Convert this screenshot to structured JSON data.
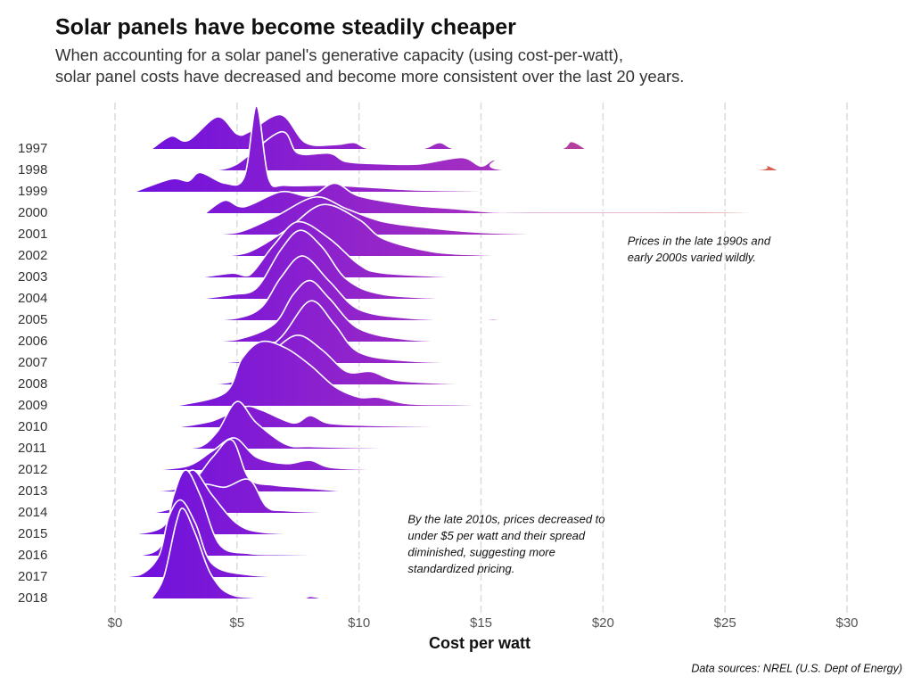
{
  "chart_data": {
    "type": "ridgeline",
    "title": "Solar panels have become steadily cheaper",
    "subtitle": [
      "When accounting for a solar panel's generative capacity (using cost-per-watt),",
      "solar panel costs have decreased and become more consistent over the last 20 years."
    ],
    "x_label": "Cost per watt",
    "source": "Data sources: NREL (U.S. Dept of Energy)",
    "annotations": [
      {
        "x": 21,
        "row": "2001",
        "lines": [
          "Prices in the late 1990s and",
          "early 2000s varied wildly."
        ]
      },
      {
        "x": 12,
        "row": "2014",
        "lines": [
          "By the late 2010s, prices decreased to",
          "under $5 per watt and their spread",
          "diminished, suggesting more",
          "standardized pricing."
        ]
      }
    ],
    "xlim": [
      -0.5,
      31
    ],
    "xticks": [
      {
        "value": 0,
        "label": "$0"
      },
      {
        "value": 5,
        "label": "$5"
      },
      {
        "value": 10,
        "label": "$10"
      },
      {
        "value": 15,
        "label": "$15"
      },
      {
        "value": 20,
        "label": "$20"
      },
      {
        "value": 25,
        "label": "$25"
      },
      {
        "value": 30,
        "label": "$30"
      }
    ],
    "grid": true,
    "colors": [
      "#6a0ee0",
      "#a52fc0",
      "#e8702a"
    ],
    "series": [
      {
        "name": "1997",
        "x": [
          1.5,
          2.3,
          3,
          4.2,
          5,
          5.5,
          6.8,
          7.8,
          9,
          9.8,
          10.5,
          12.5,
          13.3,
          14,
          16,
          18.2,
          18.7,
          19.3
        ],
        "values": [
          0,
          0.6,
          0.4,
          1.5,
          0.7,
          0.8,
          1.6,
          0.3,
          0.2,
          0.3,
          0,
          0,
          0.3,
          0,
          0,
          0,
          0.35,
          0
        ]
      },
      {
        "name": "1998",
        "x": [
          4,
          5,
          6.8,
          7.5,
          8.8,
          9.5,
          11,
          12.5,
          14.2,
          15,
          15.6,
          16.3,
          25.8,
          26.5,
          27.2
        ],
        "values": [
          0,
          0.3,
          1.8,
          0.8,
          0.8,
          0.4,
          0.3,
          0.3,
          0.6,
          0.2,
          0.5,
          0,
          0,
          0.3,
          0
        ]
      },
      {
        "name": "1999",
        "x": [
          0.8,
          2.3,
          3,
          3.5,
          4.5,
          5.3,
          5.8,
          6.3,
          7,
          9,
          12,
          14,
          17
        ],
        "values": [
          0,
          0.6,
          0.5,
          0.9,
          0.4,
          0.7,
          4,
          0.6,
          0.3,
          0.3,
          0.1,
          0.05,
          0
        ]
      },
      {
        "name": "2000",
        "x": [
          3.7,
          4.5,
          5.3,
          6.8,
          8,
          9,
          10,
          12,
          14,
          15.5,
          17,
          20,
          22,
          25,
          28
        ],
        "values": [
          0,
          0.6,
          0.3,
          1,
          0.8,
          1.4,
          0.8,
          0.4,
          0.2,
          0.05,
          0.05,
          0.05,
          0.05,
          0.05,
          0
        ]
      },
      {
        "name": "2001",
        "x": [
          3.5,
          5,
          6.5,
          8.2,
          9.5,
          11,
          13,
          15,
          18.3
        ],
        "values": [
          0,
          0.1,
          0.8,
          1.75,
          1.2,
          0.6,
          0.3,
          0.1,
          0
        ]
      },
      {
        "name": "2002",
        "x": [
          4.3,
          5.5,
          7,
          8.5,
          10,
          11,
          13,
          15,
          17.3
        ],
        "values": [
          0,
          0.2,
          1.2,
          2.4,
          1.7,
          0.8,
          0.2,
          0.05,
          0
        ]
      },
      {
        "name": "2003",
        "x": [
          3.5,
          4.8,
          5.5,
          6.5,
          7.5,
          8.8,
          10,
          11,
          14.3
        ],
        "values": [
          0,
          0.2,
          0.1,
          1.5,
          2.6,
          1.8,
          0.6,
          0.2,
          0
        ]
      },
      {
        "name": "2004",
        "x": [
          3.5,
          4.8,
          5.8,
          6.8,
          7.6,
          8.5,
          9.5,
          11,
          14
        ],
        "values": [
          0,
          0.2,
          0.5,
          2.3,
          3.2,
          2.4,
          0.9,
          0.2,
          0
        ]
      },
      {
        "name": "2005",
        "x": [
          3.5,
          5,
          6,
          6.8,
          7.7,
          8.8,
          10,
          12,
          14.3,
          15,
          15.5,
          16
        ],
        "values": [
          0,
          0.1,
          0.6,
          2,
          3,
          1.8,
          0.5,
          0.1,
          0,
          0,
          0.05,
          0
        ]
      },
      {
        "name": "2006",
        "x": [
          3.5,
          5,
          6.5,
          7.3,
          8,
          8.8,
          10,
          12,
          14.5
        ],
        "values": [
          0,
          0.1,
          0.8,
          2.2,
          2.85,
          2,
          0.6,
          0.1,
          0
        ]
      },
      {
        "name": "2007",
        "x": [
          3.8,
          5.5,
          6.8,
          8,
          9,
          10,
          12,
          15
        ],
        "values": [
          0,
          0.15,
          1.2,
          2.9,
          1.8,
          0.5,
          0.1,
          0
        ]
      },
      {
        "name": "2008",
        "x": [
          3.8,
          5,
          6.5,
          7.5,
          8.5,
          9.5,
          10.5,
          11.5,
          13.5,
          16
        ],
        "values": [
          0,
          0.2,
          1.6,
          2.3,
          1.6,
          0.6,
          0.6,
          0.2,
          0.05,
          0
        ]
      },
      {
        "name": "2009",
        "x": [
          2.5,
          4.5,
          5.2,
          6,
          7,
          8,
          9,
          10,
          10.8,
          12,
          14,
          16
        ],
        "values": [
          0,
          0.6,
          2.2,
          3,
          2.7,
          1.9,
          0.9,
          0.4,
          0.4,
          0.1,
          0.05,
          0
        ]
      },
      {
        "name": "2010",
        "x": [
          2.5,
          4,
          5.3,
          6,
          7.3,
          8,
          8.7,
          10,
          12,
          15
        ],
        "values": [
          0,
          0.3,
          0.95,
          0.8,
          0.2,
          0.55,
          0.2,
          0.1,
          0.05,
          0
        ]
      },
      {
        "name": "2011",
        "x": [
          2.5,
          3.5,
          4.2,
          5,
          5.8,
          7,
          8,
          10,
          12.8
        ],
        "values": [
          0,
          0.1,
          0.8,
          2.2,
          1.2,
          0.2,
          0.1,
          0.05,
          0
        ]
      },
      {
        "name": "2012",
        "x": [
          1.5,
          3,
          4,
          4.9,
          5.8,
          7,
          8,
          9,
          12
        ],
        "values": [
          0,
          0.2,
          0.9,
          1.5,
          0.6,
          0.3,
          0.45,
          0.1,
          0
        ]
      },
      {
        "name": "2013",
        "x": [
          1.5,
          3,
          4,
          4.8,
          5.5,
          6.5,
          7.5,
          9.5
        ],
        "values": [
          0,
          0.3,
          1.6,
          2.4,
          0.6,
          0.3,
          0.2,
          0
        ]
      },
      {
        "name": "2014",
        "x": [
          1.5,
          2.5,
          3.5,
          4.5,
          5.5,
          6.2,
          7,
          9.5
        ],
        "values": [
          0,
          0.3,
          1.3,
          1.2,
          1.55,
          0.3,
          0.1,
          0
        ]
      },
      {
        "name": "2015",
        "x": [
          0.8,
          2,
          2.6,
          3.2,
          4,
          5,
          6,
          8
        ],
        "values": [
          0,
          0.4,
          2,
          3,
          1.8,
          0.5,
          0.1,
          0
        ]
      },
      {
        "name": "2016",
        "x": [
          1,
          1.9,
          2.4,
          2.9,
          3.5,
          4.3,
          5.5,
          7,
          10.5
        ],
        "values": [
          0,
          0.5,
          2.8,
          4,
          2.8,
          0.5,
          0.1,
          0.05,
          0
        ]
      },
      {
        "name": "2017",
        "x": [
          -0.3,
          1,
          1.8,
          2.2,
          2.7,
          3.3,
          4,
          5.5,
          7.5
        ],
        "values": [
          0,
          0.1,
          1,
          2.8,
          3.6,
          2.5,
          0.6,
          0.1,
          0
        ]
      },
      {
        "name": "2018",
        "x": [
          1.5,
          2,
          2.5,
          2.8,
          3.3,
          4,
          5,
          7.5,
          8,
          8.5
        ],
        "values": [
          0,
          1,
          3.5,
          4.2,
          3,
          1,
          0.1,
          0,
          0.1,
          0
        ]
      }
    ]
  }
}
